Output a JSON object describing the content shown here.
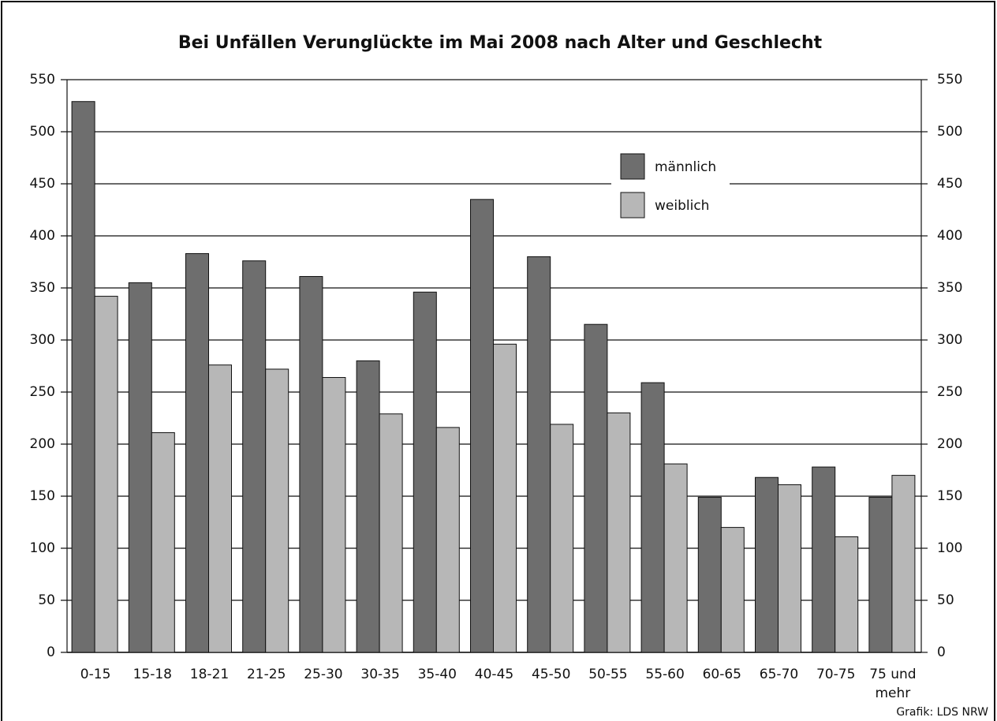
{
  "chart_data": {
    "type": "bar",
    "title": "Bei Unfällen Verunglückte im Mai 2008 nach Alter und Geschlecht",
    "categories": [
      "0-15",
      "15-18",
      "18-21",
      "21-25",
      "25-30",
      "30-35",
      "35-40",
      "40-45",
      "45-50",
      "50-55",
      "55-60",
      "60-65",
      "65-70",
      "70-75",
      "75 und mehr"
    ],
    "series": [
      {
        "name": "männlich",
        "color": "#6e6e6e",
        "values": [
          529,
          355,
          383,
          376,
          361,
          280,
          346,
          435,
          380,
          315,
          259,
          149,
          168,
          178,
          149
        ]
      },
      {
        "name": "weiblich",
        "color": "#b7b7b7",
        "values": [
          342,
          211,
          276,
          272,
          264,
          229,
          216,
          296,
          219,
          230,
          181,
          120,
          161,
          111,
          170
        ]
      }
    ],
    "ylim": [
      0,
      550
    ],
    "yticks": [
      0,
      50,
      100,
      150,
      200,
      250,
      300,
      350,
      400,
      450,
      500,
      550
    ],
    "y2lim": [
      0,
      550
    ],
    "y2ticks": [
      0,
      50,
      100,
      150,
      200,
      250,
      300,
      350,
      400,
      450,
      500,
      550
    ],
    "grid": true,
    "legend": "upper right",
    "source": "Grafik: LDS NRW"
  }
}
